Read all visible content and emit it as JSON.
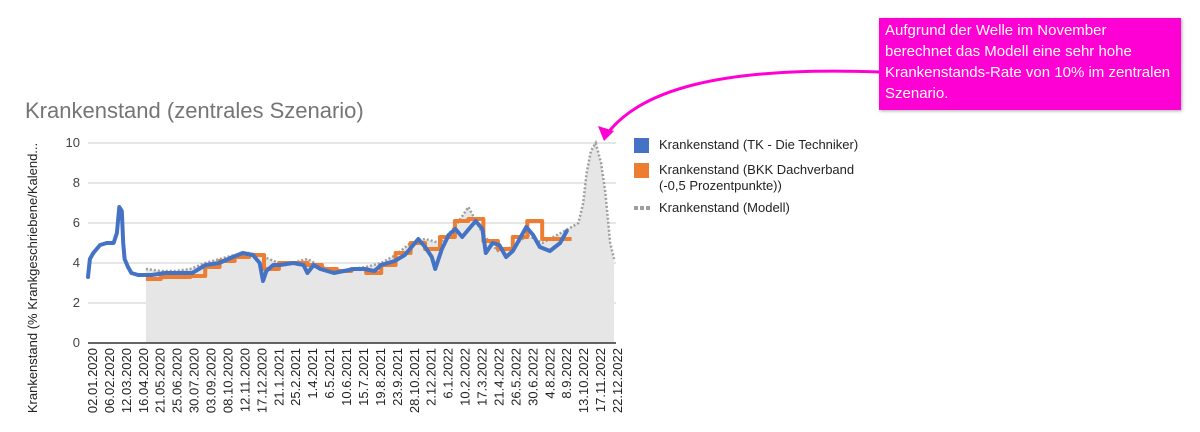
{
  "chart_data": {
    "type": "line",
    "title": "Krankenstand (zentrales Szenario)",
    "ylabel": "Krankenstand (% Krankgeschriebene/Kalend...",
    "ylim": [
      0,
      10
    ],
    "yticks": [
      "0",
      "2",
      "4",
      "6",
      "8",
      "10"
    ],
    "xlim": [
      "2020-01-02",
      "2023-01-01"
    ],
    "xtick_labels": [
      "02.01.2020",
      "06.02.2020",
      "12.03.2020",
      "16.04.2020",
      "21.05.2020",
      "25.06.2020",
      "30.07.2020",
      "03.09.2020",
      "08.10.2020",
      "12.11.2020",
      "17.12.2020",
      "21.1.2021",
      "25.2.2021",
      "1.4.2021",
      "6.5.2021",
      "10.6.2021",
      "15.7.2021",
      "19.8.2021",
      "23.9.2021",
      "28.10.2021",
      "2.12.2021",
      "6.1.2022",
      "10.2.2022",
      "17.3.2022",
      "21.4.2022",
      "26.5.2022",
      "30.6.2022",
      "4.8.2022",
      "8.9.2022",
      "13.10.2022",
      "17.11.2022",
      "22.12.2022"
    ],
    "grid": true,
    "legend_position": "right",
    "series": [
      {
        "name": "Krankenstand (TK - Die Techniker)",
        "color": "#4472c4",
        "style": "line",
        "points": [
          [
            "2020-01-02",
            3.3
          ],
          [
            "2020-01-06",
            4.2
          ],
          [
            "2020-01-13",
            4.5
          ],
          [
            "2020-01-27",
            4.9
          ],
          [
            "2020-02-10",
            5.0
          ],
          [
            "2020-02-24",
            5.0
          ],
          [
            "2020-03-02",
            5.5
          ],
          [
            "2020-03-07",
            6.8
          ],
          [
            "2020-03-12",
            6.6
          ],
          [
            "2020-03-15",
            5.0
          ],
          [
            "2020-03-18",
            4.2
          ],
          [
            "2020-03-25",
            3.8
          ],
          [
            "2020-04-01",
            3.5
          ],
          [
            "2020-04-15",
            3.4
          ],
          [
            "2020-05-13",
            3.4
          ],
          [
            "2020-06-10",
            3.5
          ],
          [
            "2020-07-08",
            3.5
          ],
          [
            "2020-08-05",
            3.5
          ],
          [
            "2020-09-02",
            3.9
          ],
          [
            "2020-09-30",
            4.0
          ],
          [
            "2020-10-28",
            4.3
          ],
          [
            "2020-11-18",
            4.5
          ],
          [
            "2020-12-09",
            4.4
          ],
          [
            "2020-12-23",
            4.0
          ],
          [
            "2020-12-30",
            3.1
          ],
          [
            "2021-01-06",
            3.6
          ],
          [
            "2021-01-20",
            3.9
          ],
          [
            "2021-02-03",
            3.9
          ],
          [
            "2021-03-03",
            4.0
          ],
          [
            "2021-03-24",
            3.9
          ],
          [
            "2021-04-01",
            3.5
          ],
          [
            "2021-04-14",
            3.9
          ],
          [
            "2021-04-28",
            3.7
          ],
          [
            "2021-05-26",
            3.5
          ],
          [
            "2021-06-16",
            3.6
          ],
          [
            "2021-07-07",
            3.7
          ],
          [
            "2021-07-28",
            3.7
          ],
          [
            "2021-08-18",
            3.6
          ],
          [
            "2021-09-01",
            3.9
          ],
          [
            "2021-09-29",
            4.1
          ],
          [
            "2021-10-20",
            4.4
          ],
          [
            "2021-11-03",
            4.8
          ],
          [
            "2021-11-17",
            5.2
          ],
          [
            "2021-12-01",
            4.8
          ],
          [
            "2021-12-15",
            4.3
          ],
          [
            "2021-12-22",
            3.7
          ],
          [
            "2022-01-05",
            4.7
          ],
          [
            "2022-01-19",
            5.4
          ],
          [
            "2022-02-02",
            5.7
          ],
          [
            "2022-02-16",
            5.3
          ],
          [
            "2022-03-02",
            5.7
          ],
          [
            "2022-03-16",
            6.1
          ],
          [
            "2022-03-30",
            5.7
          ],
          [
            "2022-04-06",
            4.5
          ],
          [
            "2022-04-20",
            5.0
          ],
          [
            "2022-05-04",
            4.9
          ],
          [
            "2022-05-18",
            4.3
          ],
          [
            "2022-06-01",
            4.6
          ],
          [
            "2022-06-15",
            5.2
          ],
          [
            "2022-06-29",
            5.8
          ],
          [
            "2022-07-13",
            5.4
          ],
          [
            "2022-07-27",
            4.8
          ],
          [
            "2022-08-17",
            4.6
          ],
          [
            "2022-09-07",
            5.0
          ],
          [
            "2022-09-21",
            5.6
          ]
        ]
      },
      {
        "name": "Krankenstand (BKK Dachverband\n(-0,5 Prozentpunkte))",
        "color": "#ed7d31",
        "style": "step",
        "points": [
          [
            "2020-05-01",
            3.2
          ],
          [
            "2020-06-01",
            3.3
          ],
          [
            "2020-07-01",
            3.3
          ],
          [
            "2020-08-01",
            3.35
          ],
          [
            "2020-09-01",
            3.8
          ],
          [
            "2020-10-01",
            4.1
          ],
          [
            "2020-11-01",
            4.3
          ],
          [
            "2020-12-01",
            4.4
          ],
          [
            "2021-01-01",
            3.7
          ],
          [
            "2021-02-01",
            4.0
          ],
          [
            "2021-03-01",
            4.0
          ],
          [
            "2021-04-01",
            3.9
          ],
          [
            "2021-05-01",
            3.7
          ],
          [
            "2021-06-01",
            3.6
          ],
          [
            "2021-07-01",
            3.7
          ],
          [
            "2021-08-01",
            3.5
          ],
          [
            "2021-09-01",
            3.9
          ],
          [
            "2021-10-01",
            4.5
          ],
          [
            "2021-11-01",
            5.0
          ],
          [
            "2021-12-01",
            4.7
          ],
          [
            "2022-01-01",
            5.3
          ],
          [
            "2022-02-01",
            6.1
          ],
          [
            "2022-03-01",
            6.2
          ],
          [
            "2022-04-01",
            5.1
          ],
          [
            "2022-05-01",
            4.7
          ],
          [
            "2022-06-01",
            5.3
          ],
          [
            "2022-07-01",
            6.1
          ],
          [
            "2022-08-01",
            5.2
          ],
          [
            "2022-09-01",
            5.2
          ]
        ]
      },
      {
        "name": "Krankenstand (Modell)",
        "color": "#9e9e9e",
        "style": "area-dotted",
        "points": [
          [
            "2020-05-01",
            3.7
          ],
          [
            "2020-06-01",
            3.6
          ],
          [
            "2020-07-01",
            3.6
          ],
          [
            "2020-08-01",
            3.7
          ],
          [
            "2020-09-01",
            4.0
          ],
          [
            "2020-10-01",
            4.2
          ],
          [
            "2020-11-01",
            4.4
          ],
          [
            "2020-12-01",
            4.5
          ],
          [
            "2021-01-01",
            4.3
          ],
          [
            "2021-02-01",
            4.0
          ],
          [
            "2021-03-01",
            4.0
          ],
          [
            "2021-04-01",
            4.2
          ],
          [
            "2021-05-01",
            3.8
          ],
          [
            "2021-06-01",
            3.6
          ],
          [
            "2021-07-01",
            3.7
          ],
          [
            "2021-08-01",
            3.8
          ],
          [
            "2021-09-01",
            4.0
          ],
          [
            "2021-10-01",
            4.4
          ],
          [
            "2021-11-01",
            5.0
          ],
          [
            "2021-12-01",
            5.2
          ],
          [
            "2022-01-01",
            5.0
          ],
          [
            "2022-02-01",
            5.8
          ],
          [
            "2022-03-01",
            6.8
          ],
          [
            "2022-04-01",
            5.4
          ],
          [
            "2022-05-01",
            4.6
          ],
          [
            "2022-06-01",
            4.8
          ],
          [
            "2022-07-01",
            5.4
          ],
          [
            "2022-08-01",
            5.0
          ],
          [
            "2022-09-01",
            5.4
          ],
          [
            "2022-10-01",
            5.8
          ],
          [
            "2022-10-15",
            6.0
          ],
          [
            "2022-10-25",
            7.0
          ],
          [
            "2022-11-01",
            8.5
          ],
          [
            "2022-11-10",
            9.6
          ],
          [
            "2022-11-20",
            10.0
          ],
          [
            "2022-12-01",
            9.0
          ],
          [
            "2022-12-10",
            7.5
          ],
          [
            "2022-12-20",
            5.0
          ],
          [
            "2022-12-28",
            4.2
          ]
        ]
      }
    ],
    "annotations": [
      {
        "text": "Aufgrund der Welle im November berechnet das Modell eine sehr hohe Krankenstands-Rate von 10% im zentralen Szenario.",
        "background": "#ff00d4",
        "text_color": "#ffffff",
        "arrow_color": "#ff00d4"
      }
    ]
  }
}
